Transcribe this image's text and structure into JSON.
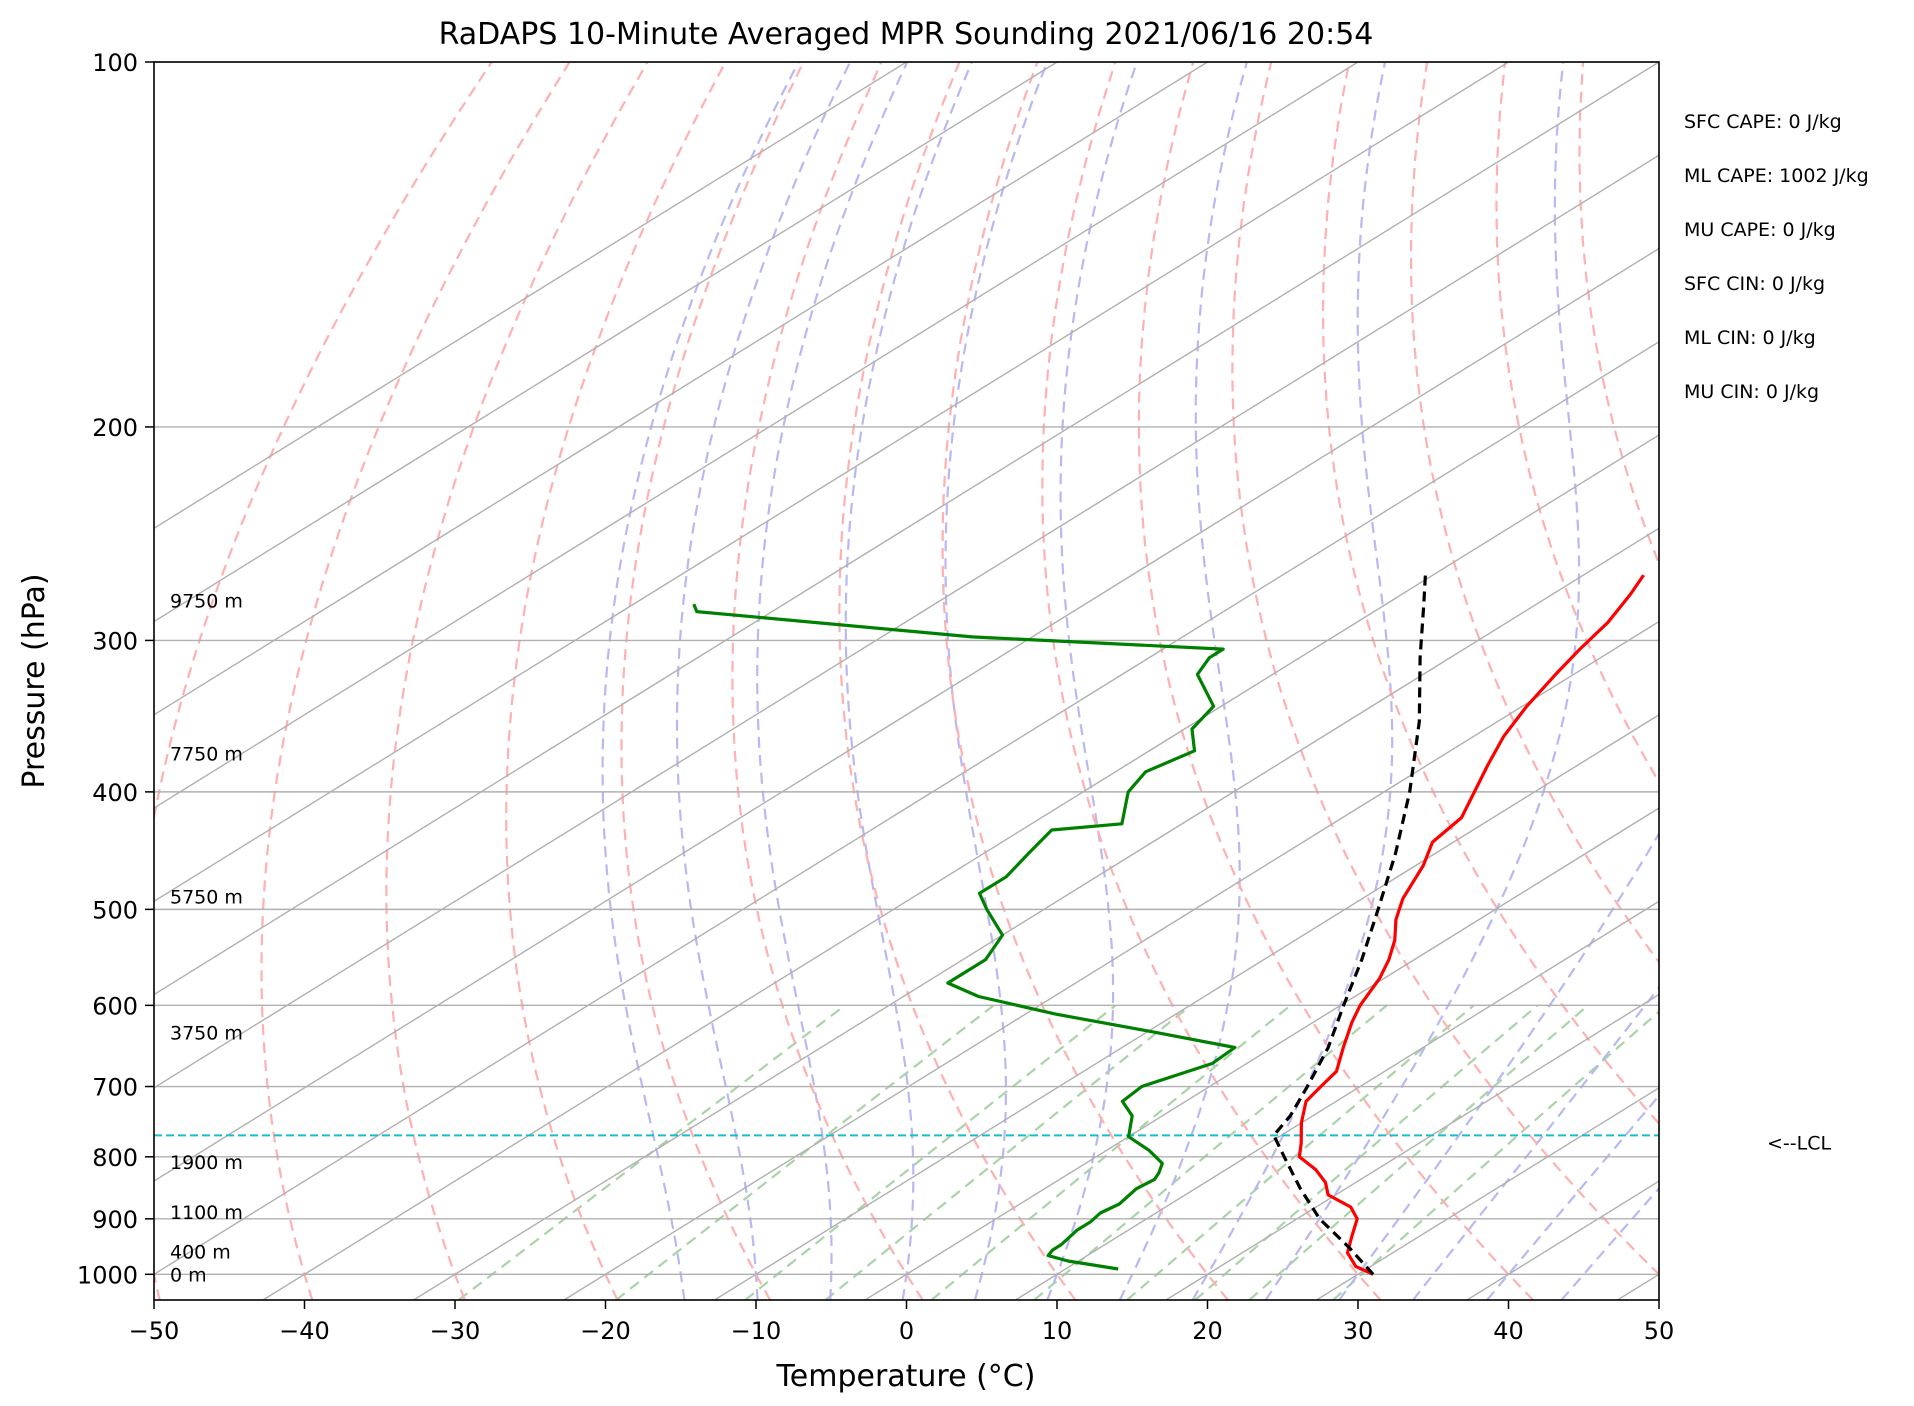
{
  "chart_data": {
    "type": "line",
    "title": "RaDAPS 10-Minute Averaged MPR Sounding 2021/06/16 20:54",
    "xlabel": "Temperature (°C)",
    "ylabel": "Pressure (hPa)",
    "xlim": [
      -50,
      50
    ],
    "ylim": [
      1050,
      100
    ],
    "y_scale": "log",
    "x_ticks": [
      "−50",
      "−40",
      "−30",
      "−20",
      "−10",
      "0",
      "10",
      "20",
      "30",
      "40",
      "50"
    ],
    "x_tick_values": [
      -50,
      -40,
      -30,
      -20,
      -10,
      0,
      10,
      20,
      30,
      40,
      50
    ],
    "y_ticks": [
      "100",
      "200",
      "300",
      "400",
      "500",
      "600",
      "700",
      "800",
      "900",
      "1000"
    ],
    "y_tick_values": [
      100,
      200,
      300,
      400,
      500,
      600,
      700,
      800,
      900,
      1000
    ],
    "grid": true,
    "skew_rate_c_per_decade": 130,
    "series": [
      {
        "role": "temperature",
        "color": "#ff0000",
        "points": [
          [
            1000,
            31
          ],
          [
            985,
            29
          ],
          [
            960,
            27
          ],
          [
            930,
            25.5
          ],
          [
            900,
            24
          ],
          [
            880,
            22.3
          ],
          [
            860,
            19.5
          ],
          [
            840,
            18
          ],
          [
            820,
            16
          ],
          [
            800,
            13.5
          ],
          [
            780,
            12.2
          ],
          [
            750,
            10
          ],
          [
            720,
            8
          ],
          [
            700,
            7.4
          ],
          [
            680,
            6.8
          ],
          [
            650,
            4.7
          ],
          [
            620,
            2.6
          ],
          [
            600,
            1.3
          ],
          [
            570,
            -0.3
          ],
          [
            550,
            -1.7
          ],
          [
            530,
            -3.4
          ],
          [
            510,
            -5.5
          ],
          [
            490,
            -7.3
          ],
          [
            460,
            -9.5
          ],
          [
            440,
            -11.4
          ],
          [
            420,
            -12.1
          ],
          [
            400,
            -14
          ],
          [
            380,
            -16
          ],
          [
            360,
            -18
          ],
          [
            340,
            -19.7
          ],
          [
            320,
            -21.2
          ],
          [
            305,
            -22.3
          ],
          [
            290,
            -23.3
          ],
          [
            275,
            -24.8
          ],
          [
            265,
            -26
          ]
        ]
      },
      {
        "role": "dewpoint",
        "color": "#008000",
        "points": [
          [
            990,
            13.5
          ],
          [
            975,
            9.3
          ],
          [
            965,
            7.4
          ],
          [
            955,
            7.1
          ],
          [
            945,
            7.1
          ],
          [
            935,
            6.9
          ],
          [
            920,
            6.6
          ],
          [
            905,
            6.6
          ],
          [
            890,
            6.3
          ],
          [
            875,
            6.6
          ],
          [
            850,
            6.1
          ],
          [
            835,
            6.3
          ],
          [
            825,
            5.9
          ],
          [
            810,
            5.1
          ],
          [
            790,
            2.8
          ],
          [
            770,
            0
          ],
          [
            740,
            -2
          ],
          [
            720,
            -4.2
          ],
          [
            700,
            -4.5
          ],
          [
            670,
            -2.3
          ],
          [
            650,
            -2.5
          ],
          [
            630,
            -10
          ],
          [
            610,
            -18
          ],
          [
            590,
            -25
          ],
          [
            575,
            -28.5
          ],
          [
            550,
            -28.5
          ],
          [
            525,
            -30
          ],
          [
            500,
            -33.8
          ],
          [
            485,
            -36
          ],
          [
            470,
            -36
          ],
          [
            450,
            -37
          ],
          [
            430,
            -38
          ],
          [
            425,
            -34
          ],
          [
            400,
            -37
          ],
          [
            385,
            -38
          ],
          [
            370,
            -37
          ],
          [
            355,
            -39.5
          ],
          [
            340,
            -40.5
          ],
          [
            320,
            -45
          ],
          [
            310,
            -46
          ],
          [
            305,
            -46
          ],
          [
            298,
            -64
          ],
          [
            284,
            -85
          ],
          [
            280,
            -86
          ]
        ]
      },
      {
        "role": "parcel",
        "color": "#000000",
        "points": [
          [
            1000,
            31
          ],
          [
            950,
            26.5
          ],
          [
            900,
            21.5
          ],
          [
            850,
            17
          ],
          [
            800,
            12.5
          ],
          [
            768,
            9.5
          ],
          [
            740,
            8.5
          ],
          [
            700,
            6.5
          ],
          [
            650,
            3.7
          ],
          [
            600,
            0.2
          ],
          [
            550,
            -3.5
          ],
          [
            500,
            -7.8
          ],
          [
            450,
            -12.6
          ],
          [
            400,
            -18.3
          ],
          [
            350,
            -25.2
          ],
          [
            310,
            -32
          ],
          [
            280,
            -37.5
          ],
          [
            265,
            -40.5
          ]
        ]
      }
    ],
    "lcl_hpa": 768,
    "lcl_label": "<--LCL",
    "height_labels": [
      {
        "text": "0 m",
        "p": 1000
      },
      {
        "text": "400 m",
        "p": 958
      },
      {
        "text": "1100 m",
        "p": 888
      },
      {
        "text": "1900 m",
        "p": 808
      },
      {
        "text": "3750 m",
        "p": 632
      },
      {
        "text": "5750 m",
        "p": 488
      },
      {
        "text": "7750 m",
        "p": 372
      },
      {
        "text": "9750 m",
        "p": 278
      }
    ],
    "indices": [
      "SFC CAPE: 0 J/kg",
      "ML CAPE: 1002 J/kg",
      "MU CAPE: 0 J/kg",
      "SFC CIN: 0 J/kg",
      "ML CIN: 0 J/kg",
      "MU CIN: 0 J/kg"
    ],
    "isotherms_c": [
      -130,
      -120,
      -110,
      -100,
      -90,
      -80,
      -70,
      -60,
      -50,
      -40,
      -30,
      -20,
      -10,
      0,
      10,
      20,
      30,
      40,
      50
    ],
    "dry_adiabat_theta_c": [
      -50,
      -40,
      -30,
      -20,
      -10,
      0,
      10,
      20,
      30,
      40,
      50,
      60,
      70,
      80,
      90,
      100,
      110,
      120,
      130,
      140,
      150,
      160
    ],
    "moist_adiabat_start_c": [
      -15,
      -10,
      -5,
      0,
      5,
      10,
      15,
      20,
      25,
      30,
      35,
      40,
      45
    ],
    "mixing_ratio_gkg": [
      0.4,
      1,
      2,
      3,
      5,
      8,
      12,
      16,
      20,
      28
    ],
    "colors": {
      "temperature": "#ff0000",
      "dewpoint": "#008000",
      "parcel": "#000000",
      "lcl": "#17becf",
      "dry_adiabat": "#ffb0b0",
      "moist_adiabat": "#b8b8f4",
      "mixing_ratio": "#a8d4a8",
      "grid": "#b0b0b0"
    }
  }
}
